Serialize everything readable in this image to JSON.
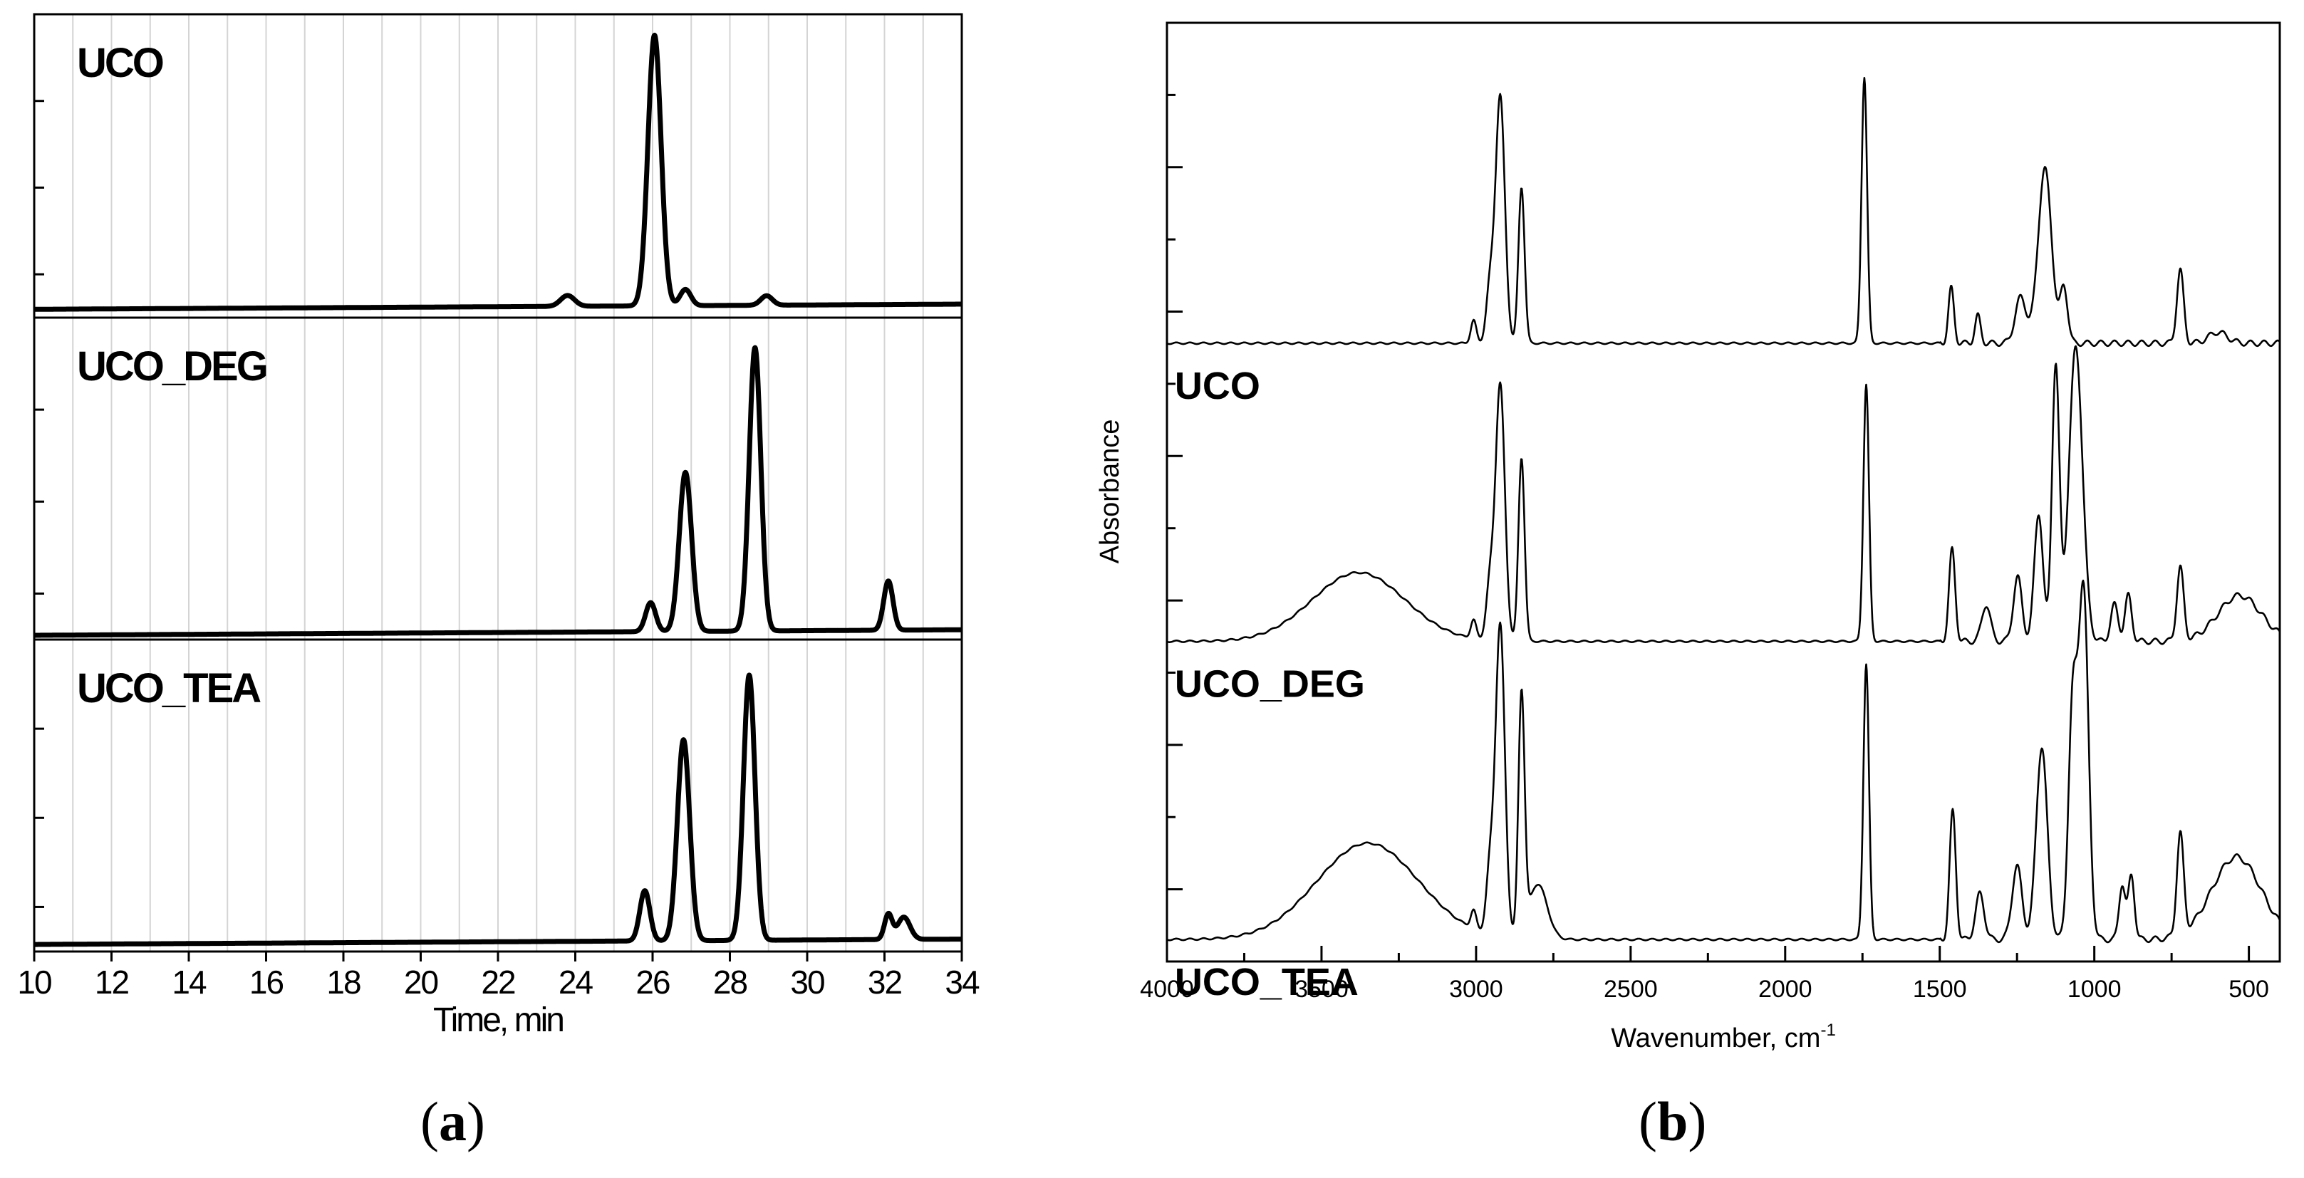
{
  "chart_data": [
    {
      "id": "a",
      "panel_caption": "a",
      "type": "line",
      "title": "",
      "xlabel": "Time, min",
      "ylabel": "",
      "xlim": [
        10,
        34
      ],
      "xticks": [
        10,
        12,
        14,
        16,
        18,
        20,
        22,
        24,
        26,
        28,
        30,
        32,
        34
      ],
      "grid": "vertical lines at every 1 min",
      "subplots": [
        {
          "label": "UCO",
          "ylim": [
            0,
            1
          ],
          "baseline": 0.015,
          "peaks": [
            {
              "x": 23.8,
              "height": 0.04,
              "width": 0.18
            },
            {
              "x": 26.05,
              "height": 1.0,
              "width": 0.17
            },
            {
              "x": 26.85,
              "height": 0.06,
              "width": 0.14
            },
            {
              "x": 28.95,
              "height": 0.035,
              "width": 0.15
            }
          ]
        },
        {
          "label": "UCO_DEG",
          "ylim": [
            0,
            1
          ],
          "baseline": 0.0,
          "peaks": [
            {
              "x": 25.95,
              "height": 0.1,
              "width": 0.13
            },
            {
              "x": 26.85,
              "height": 0.55,
              "width": 0.16
            },
            {
              "x": 28.65,
              "height": 0.98,
              "width": 0.15
            },
            {
              "x": 32.1,
              "height": 0.17,
              "width": 0.12
            }
          ]
        },
        {
          "label": "UCO_TEA",
          "ylim": [
            0,
            1
          ],
          "baseline": 0.01,
          "peaks": [
            {
              "x": 25.8,
              "height": 0.18,
              "width": 0.13
            },
            {
              "x": 26.8,
              "height": 0.72,
              "width": 0.16
            },
            {
              "x": 28.5,
              "height": 0.95,
              "width": 0.15
            },
            {
              "x": 32.1,
              "height": 0.09,
              "width": 0.1
            },
            {
              "x": 32.5,
              "height": 0.08,
              "width": 0.16
            }
          ]
        }
      ]
    },
    {
      "id": "b",
      "panel_caption": "b",
      "type": "line",
      "title": "",
      "xlabel": "Wavenumber, cm",
      "xlabel_superscript": "-1",
      "ylabel": "Absorbance",
      "xlim": [
        4000,
        400
      ],
      "xticks": [
        4000,
        3500,
        3000,
        2500,
        2000,
        1500,
        1000,
        500
      ],
      "ylim": [
        0,
        1
      ],
      "series": [
        {
          "name": "UCO",
          "offset": 0.66,
          "bands": [
            {
              "x": 3008,
              "height": 0.025,
              "width": 9
            },
            {
              "x": 2955,
              "height": 0.06,
              "width": 12
            },
            {
              "x": 2922,
              "height": 0.27,
              "width": 15
            },
            {
              "x": 2853,
              "height": 0.17,
              "width": 10
            },
            {
              "x": 1744,
              "height": 0.29,
              "width": 9
            },
            {
              "x": 1463,
              "height": 0.06,
              "width": 9
            },
            {
              "x": 1377,
              "height": 0.03,
              "width": 9
            },
            {
              "x": 1238,
              "height": 0.05,
              "width": 18
            },
            {
              "x": 1160,
              "height": 0.19,
              "width": 22
            },
            {
              "x": 1098,
              "height": 0.06,
              "width": 12
            },
            {
              "x": 722,
              "height": 0.08,
              "width": 11
            },
            {
              "x": 600,
              "height": 0.012,
              "width": 30
            }
          ]
        },
        {
          "name": "UCO_DEG",
          "offset": 0.335,
          "bands": [
            {
              "x": 3380,
              "height": 0.075,
              "width": 150
            },
            {
              "x": 3008,
              "height": 0.02,
              "width": 9
            },
            {
              "x": 2955,
              "height": 0.06,
              "width": 12
            },
            {
              "x": 2922,
              "height": 0.28,
              "width": 15
            },
            {
              "x": 2853,
              "height": 0.2,
              "width": 10
            },
            {
              "x": 1738,
              "height": 0.28,
              "width": 9
            },
            {
              "x": 1460,
              "height": 0.1,
              "width": 10
            },
            {
              "x": 1350,
              "height": 0.04,
              "width": 14
            },
            {
              "x": 1248,
              "height": 0.07,
              "width": 14
            },
            {
              "x": 1180,
              "height": 0.14,
              "width": 14
            },
            {
              "x": 1125,
              "height": 0.3,
              "width": 12
            },
            {
              "x": 1060,
              "height": 0.32,
              "width": 22
            },
            {
              "x": 935,
              "height": 0.04,
              "width": 12
            },
            {
              "x": 890,
              "height": 0.05,
              "width": 11
            },
            {
              "x": 722,
              "height": 0.08,
              "width": 11
            },
            {
              "x": 530,
              "height": 0.05,
              "width": 70
            }
          ]
        },
        {
          "name": "UCO_TEA",
          "offset": 0.01,
          "bands": [
            {
              "x": 3350,
              "height": 0.105,
              "width": 165
            },
            {
              "x": 3008,
              "height": 0.02,
              "width": 9
            },
            {
              "x": 2955,
              "height": 0.07,
              "width": 12
            },
            {
              "x": 2922,
              "height": 0.34,
              "width": 15
            },
            {
              "x": 2853,
              "height": 0.26,
              "width": 10
            },
            {
              "x": 2800,
              "height": 0.06,
              "width": 30
            },
            {
              "x": 1738,
              "height": 0.3,
              "width": 9
            },
            {
              "x": 1458,
              "height": 0.14,
              "width": 10
            },
            {
              "x": 1370,
              "height": 0.05,
              "width": 14
            },
            {
              "x": 1250,
              "height": 0.08,
              "width": 16
            },
            {
              "x": 1170,
              "height": 0.21,
              "width": 18
            },
            {
              "x": 1070,
              "height": 0.25,
              "width": 14
            },
            {
              "x": 1035,
              "height": 0.38,
              "width": 16
            },
            {
              "x": 910,
              "height": 0.06,
              "width": 10
            },
            {
              "x": 880,
              "height": 0.07,
              "width": 10
            },
            {
              "x": 722,
              "height": 0.11,
              "width": 11
            },
            {
              "x": 540,
              "height": 0.09,
              "width": 80
            }
          ]
        }
      ]
    }
  ]
}
